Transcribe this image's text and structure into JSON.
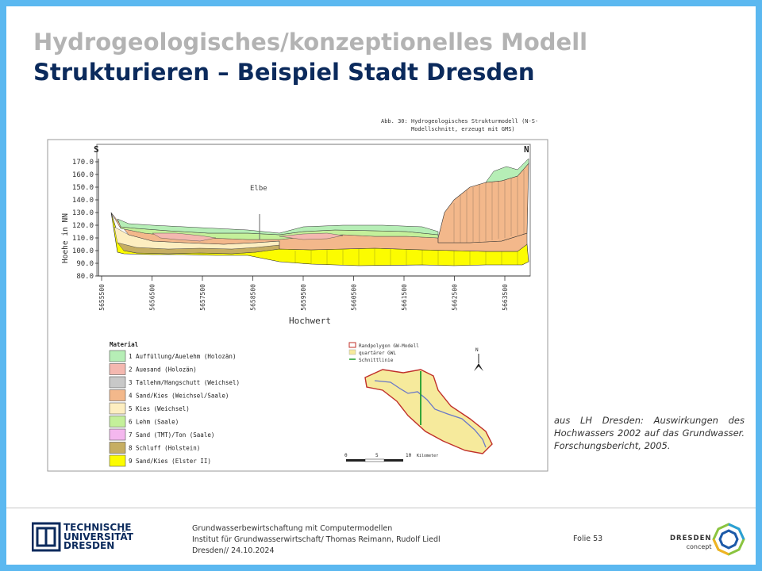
{
  "header": {
    "title_line1": "Hydrogeologisches/konzeptionelles Modell",
    "title_line2": "Strukturieren – Beispiel Stadt Dresden"
  },
  "figure": {
    "abb_number": "Abb. 30:",
    "abb_text_1": "Hydrogeologisches Strukturmodell (N-S-",
    "abb_text_2": "Modellschnitt, erzeugt mit GMS)",
    "label_south": "S",
    "label_north": "N",
    "label_river": "Elbe",
    "y_axis_label": "Hoehe in NN",
    "x_axis_label": "Hochwert",
    "y_ticks": [
      "170.0",
      "160.0",
      "150.0",
      "140.0",
      "130.0",
      "120.0",
      "110.0",
      "100.0",
      "90.0",
      "80.0"
    ],
    "x_ticks": [
      "5655500",
      "5656500",
      "5657500",
      "5658500",
      "5659500",
      "5660500",
      "5661500",
      "5662500",
      "5663500"
    ],
    "legend_title": "Material",
    "legend": [
      {
        "label": "1 Auffüllung/Auelehm (Holozän)",
        "color": "#b6eeb6"
      },
      {
        "label": "2 Auesand (Holozän)",
        "color": "#f4b8b0"
      },
      {
        "label": "3 Tallehm/Hangschutt (Weichsel)",
        "color": "#c8c8c8"
      },
      {
        "label": "4 Sand/Kies (Weichsel/Saale)",
        "color": "#f3b88b"
      },
      {
        "label": "5 Kies (Weichsel)",
        "color": "#fdeec0"
      },
      {
        "label": "6 Lehm (Saale)",
        "color": "#c4f09a"
      },
      {
        "label": "7 Sand (TMT)/Ton (Saale)",
        "color": "#f4b7ee"
      },
      {
        "label": "8 Schluff (Holstein)",
        "color": "#c6ae62"
      },
      {
        "label": "9 Sand/Kies (Elster II)",
        "color": "#fcfc00"
      }
    ],
    "map_legend": [
      {
        "label": "Randpolygon GW-Modell",
        "color": "#c0302a"
      },
      {
        "label": "quartärer GWL",
        "color": "#f6ea9c"
      },
      {
        "label": "Schnittlinie",
        "color": "#1e9e2e"
      }
    ],
    "north_arrow": "N",
    "scale_labels": [
      "0",
      "5",
      "10"
    ],
    "scale_unit": "Kilometer"
  },
  "caption": "aus LH Dresden: Auswirkungen des Hochwassers 2002 auf das Grundwasser. Forschungsbericht, 2005.",
  "footer": {
    "logo_line1": "TECHNISCHE",
    "logo_line2": "UNIVERSITÄT",
    "logo_line3": "DRESDEN",
    "info_line1": "Grundwasserbewirtschaftung mit Computermodellen",
    "info_line2": "Institut für Grundwasserwirtschaft/ Thomas Reimann, Rudolf Liedl",
    "info_line3": "Dresden// 24.10.2024",
    "slide_number": "Folie 53",
    "partner_line1": "DRESDEN",
    "partner_line2": "concept"
  }
}
